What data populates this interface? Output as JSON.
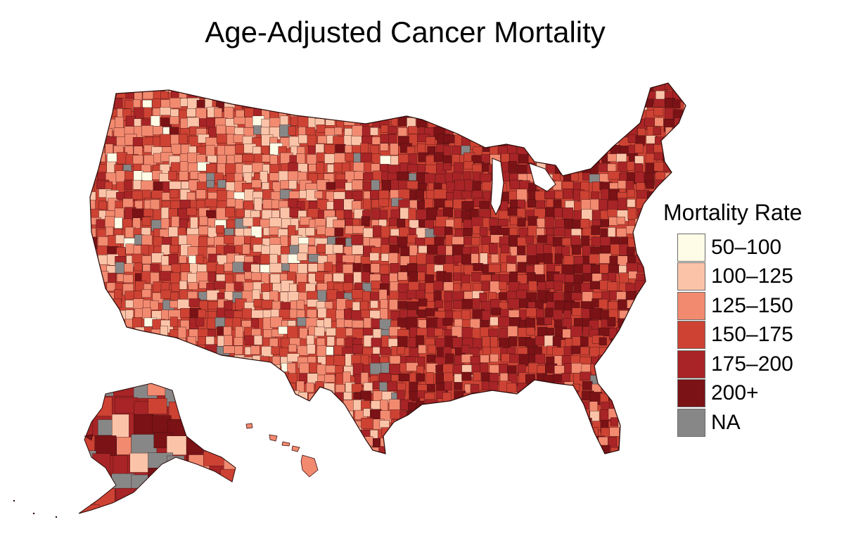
{
  "title": "Age-Adjusted Cancer Mortality",
  "legend": {
    "title": "Mortality Rate",
    "items": [
      {
        "label": "50–100",
        "color": "#fefce6"
      },
      {
        "label": "100–125",
        "color": "#fbc4a8"
      },
      {
        "label": "125–150",
        "color": "#f28a70"
      },
      {
        "label": "150–175",
        "color": "#cd4233"
      },
      {
        "label": "175–200",
        "color": "#a82426"
      },
      {
        "label": "200+",
        "color": "#7a1216"
      },
      {
        "label": "NA",
        "color": "#878787"
      }
    ]
  },
  "map": {
    "region": "United States counties",
    "border_color": "#3a1010"
  }
}
